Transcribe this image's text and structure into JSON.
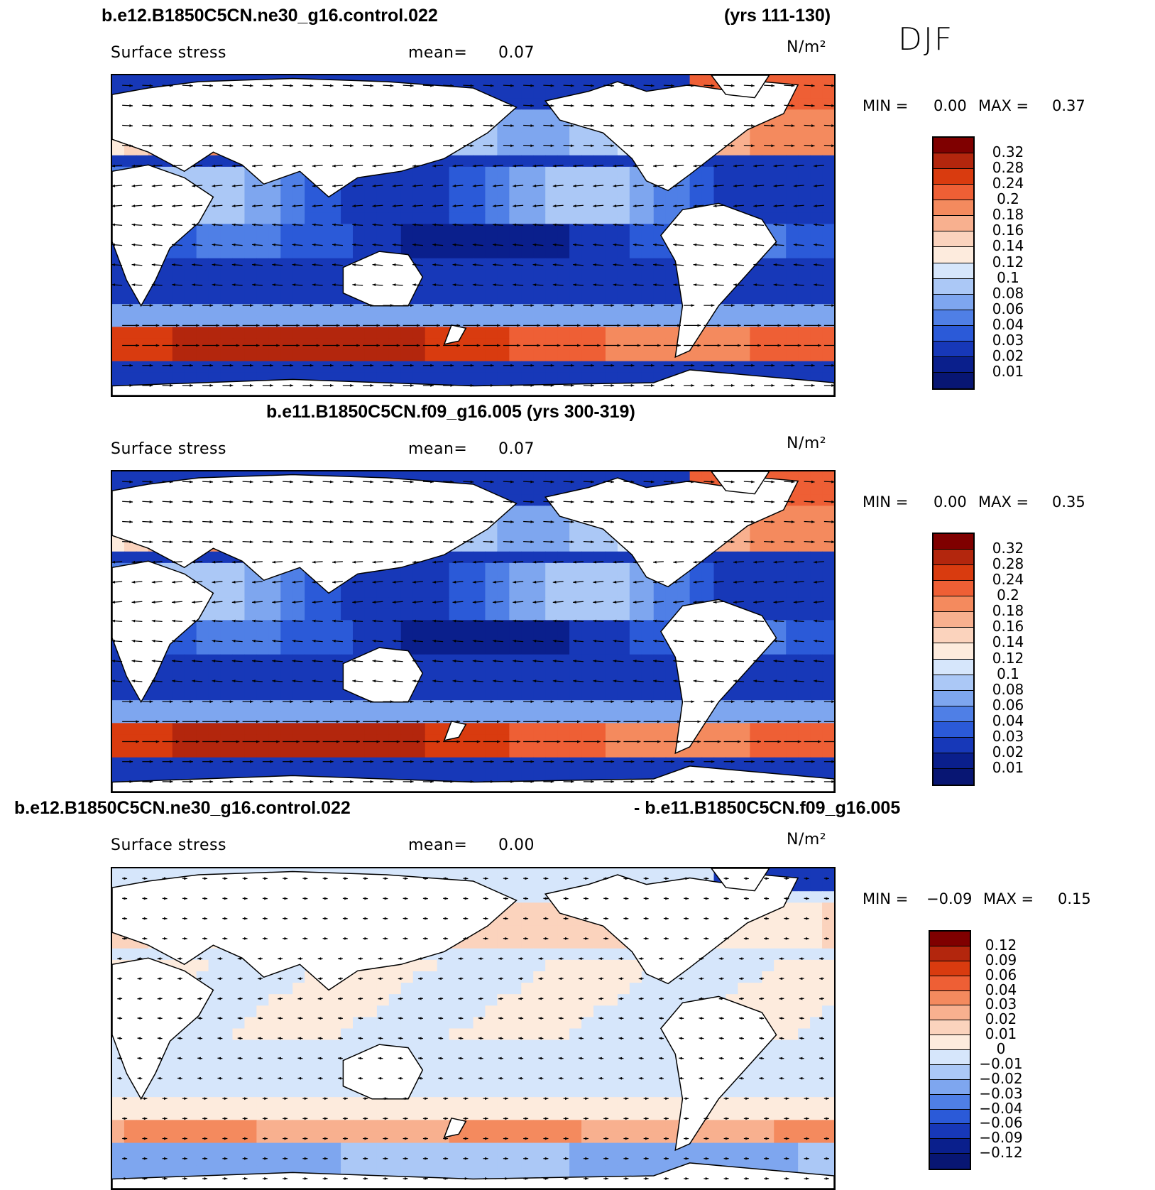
{
  "panel1": {
    "title_left": "b.e12.B1850C5CN.ne30_g16.control.022",
    "title_right": "(yrs 111-130)",
    "variable": "Surface stress",
    "mean_label": "mean=",
    "mean_value": "0.07",
    "units": "N/m²",
    "season": "DJF",
    "min_label": "MIN =",
    "min_value": "0.00",
    "max_label": "MAX =",
    "max_value": "0.37",
    "colorbar_labels": [
      "0.32",
      "0.28",
      "0.24",
      "0.2",
      "0.18",
      "0.16",
      "0.14",
      "0.12",
      "0.1",
      "0.08",
      "0.06",
      "0.04",
      "0.03",
      "0.02",
      "0.01"
    ]
  },
  "panel2": {
    "title": "b.e11.B1850C5CN.f09_g16.005 (yrs 300-319)",
    "variable": "Surface stress",
    "mean_label": "mean=",
    "mean_value": "0.07",
    "units": "N/m²",
    "min_label": "MIN =",
    "min_value": "0.00",
    "max_label": "MAX =",
    "max_value": "0.35",
    "colorbar_labels": [
      "0.32",
      "0.28",
      "0.24",
      "0.2",
      "0.18",
      "0.16",
      "0.14",
      "0.12",
      "0.1",
      "0.08",
      "0.06",
      "0.04",
      "0.03",
      "0.02",
      "0.01"
    ]
  },
  "panel3": {
    "title_left": "b.e12.B1850C5CN.ne30_g16.control.022",
    "title_right": "- b.e11.B1850C5CN.f09_g16.005",
    "variable": "Surface stress",
    "mean_label": "mean=",
    "mean_value": "0.00",
    "units": "N/m²",
    "min_label": "MIN =",
    "min_value": "−0.09",
    "max_label": "MAX =",
    "max_value": "0.15",
    "colorbar_labels": [
      "0.12",
      "0.09",
      "0.06",
      "0.04",
      "0.03",
      "0.02",
      "0.01",
      "0",
      "−0.01",
      "−0.02",
      "−0.03",
      "−0.04",
      "−0.06",
      "−0.09",
      "−0.12"
    ]
  },
  "colors": {
    "abs_scale": [
      "#7f0000",
      "#b3260d",
      "#d93b0f",
      "#ee5f35",
      "#f48a5e",
      "#f8b08f",
      "#fbd3bd",
      "#fdebdd",
      "#d6e6fb",
      "#abc8f6",
      "#7ea6ef",
      "#4f7fe6",
      "#2b5ad8",
      "#1738b8",
      "#0a1f8c",
      "#081673"
    ],
    "diff_scale": [
      "#7f0000",
      "#b3260d",
      "#d93b0f",
      "#ee5f35",
      "#f48a5e",
      "#f8b08f",
      "#fbd3bd",
      "#fdebdd",
      "#d6e6fb",
      "#abc8f6",
      "#7ea6ef",
      "#4f7fe6",
      "#2b5ad8",
      "#1738b8",
      "#0a1f8c",
      "#081673"
    ]
  }
}
